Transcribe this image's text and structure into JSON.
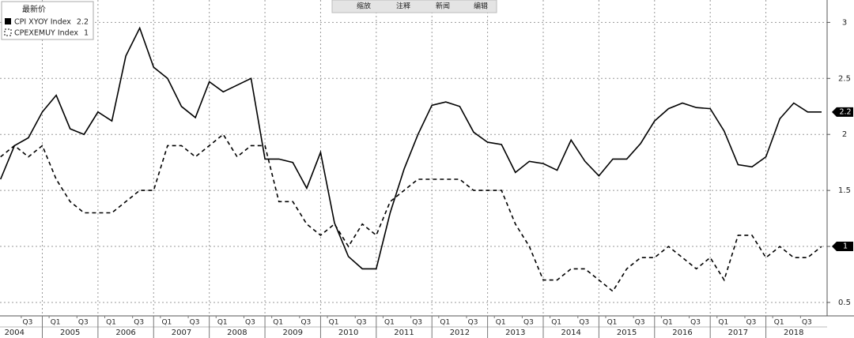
{
  "chart_data": {
    "type": "line",
    "legend_title": "最新价",
    "toolbar": [
      "缩放",
      "注释",
      "新闻",
      "编辑"
    ],
    "x": [
      2004.25,
      2004.5,
      2004.75,
      2005,
      2005.25,
      2005.5,
      2005.75,
      2006,
      2006.25,
      2006.5,
      2006.75,
      2007,
      2007.25,
      2007.5,
      2007.75,
      2008,
      2008.25,
      2008.5,
      2008.75,
      2009,
      2009.25,
      2009.5,
      2009.75,
      2010,
      2010.25,
      2010.5,
      2010.75,
      2011,
      2011.25,
      2011.5,
      2011.75,
      2012,
      2012.25,
      2012.5,
      2012.75,
      2013,
      2013.25,
      2013.5,
      2013.75,
      2014,
      2014.25,
      2014.5,
      2014.75,
      2015,
      2015.25,
      2015.5,
      2015.75,
      2016,
      2016.25,
      2016.5,
      2016.75,
      2017,
      2017.25,
      2017.5,
      2017.75,
      2018,
      2018.25,
      2018.5,
      2018.75,
      2019
    ],
    "series": [
      {
        "name": "CPI XYOY Index",
        "last_value": 2.2,
        "color": "#000000",
        "dash": false,
        "values": [
          1.6,
          1.9,
          1.97,
          2.2,
          2.35,
          2.05,
          2.0,
          2.2,
          2.12,
          2.7,
          2.95,
          2.6,
          2.5,
          2.25,
          2.15,
          2.47,
          2.38,
          2.44,
          2.5,
          1.78,
          1.78,
          1.75,
          1.52,
          1.84,
          1.21,
          0.91,
          0.8,
          0.8,
          1.3,
          1.69,
          2.0,
          2.26,
          2.29,
          2.25,
          2.02,
          1.93,
          1.91,
          1.66,
          1.76,
          1.74,
          1.68,
          1.95,
          1.76,
          1.63,
          1.78,
          1.78,
          1.92,
          2.12,
          2.23,
          2.28,
          2.24,
          2.23,
          2.03,
          1.73,
          1.71,
          1.8,
          2.14,
          2.28,
          2.2,
          2.2
        ]
      },
      {
        "name": "CPEXEMUY Index",
        "last_value": 1.0,
        "color": "#000000",
        "dash": true,
        "values": [
          1.8,
          1.9,
          1.8,
          1.9,
          1.6,
          1.4,
          1.3,
          1.3,
          1.3,
          1.4,
          1.5,
          1.5,
          1.9,
          1.9,
          1.8,
          1.9,
          2.0,
          1.8,
          1.9,
          1.9,
          1.4,
          1.4,
          1.2,
          1.1,
          1.2,
          1.0,
          1.2,
          1.1,
          1.4,
          1.5,
          1.6,
          1.6,
          1.6,
          1.6,
          1.5,
          1.5,
          1.5,
          1.2,
          1.0,
          0.7,
          0.7,
          0.8,
          0.8,
          0.7,
          0.6,
          0.8,
          0.9,
          0.9,
          1.0,
          0.9,
          0.8,
          0.9,
          0.7,
          1.1,
          1.1,
          0.9,
          1.0,
          0.9,
          0.9,
          1.0
        ]
      }
    ],
    "xlim": [
      2004.24,
      2019.1
    ],
    "ylim": [
      0.38,
      3.2
    ],
    "yticks": [
      0.5,
      1.0,
      1.5,
      2.0,
      2.5,
      3.0
    ],
    "year_ticks": [
      2004,
      2005,
      2006,
      2007,
      2008,
      2009,
      2010,
      2011,
      2012,
      2013,
      2014,
      2015,
      2016,
      2017,
      2018
    ],
    "quarter_ticks": [
      {
        "value": 2004.75,
        "label": "Q3"
      },
      {
        "value": 2005.25,
        "label": "Q1"
      },
      {
        "value": 2005.75,
        "label": "Q3"
      },
      {
        "value": 2006.25,
        "label": "Q1"
      },
      {
        "value": 2006.75,
        "label": "Q3"
      },
      {
        "value": 2007.25,
        "label": "Q1"
      },
      {
        "value": 2007.75,
        "label": "Q3"
      },
      {
        "value": 2008.25,
        "label": "Q1"
      },
      {
        "value": 2008.75,
        "label": "Q3"
      },
      {
        "value": 2009.25,
        "label": "Q1"
      },
      {
        "value": 2009.75,
        "label": "Q3"
      },
      {
        "value": 2010.25,
        "label": "Q1"
      },
      {
        "value": 2010.75,
        "label": "Q3"
      },
      {
        "value": 2011.25,
        "label": "Q1"
      },
      {
        "value": 2011.75,
        "label": "Q3"
      },
      {
        "value": 2012.25,
        "label": "Q1"
      },
      {
        "value": 2012.75,
        "label": "Q3"
      },
      {
        "value": 2013.25,
        "label": "Q1"
      },
      {
        "value": 2013.75,
        "label": "Q3"
      },
      {
        "value": 2014.25,
        "label": "Q1"
      },
      {
        "value": 2014.75,
        "label": "Q3"
      },
      {
        "value": 2015.25,
        "label": "Q1"
      },
      {
        "value": 2015.75,
        "label": "Q3"
      },
      {
        "value": 2016.25,
        "label": "Q1"
      },
      {
        "value": 2016.75,
        "label": "Q3"
      },
      {
        "value": 2017.25,
        "label": "Q1"
      },
      {
        "value": 2017.75,
        "label": "Q3"
      },
      {
        "value": 2018.25,
        "label": "Q1"
      },
      {
        "value": 2018.75,
        "label": "Q3"
      }
    ],
    "grid": true
  }
}
